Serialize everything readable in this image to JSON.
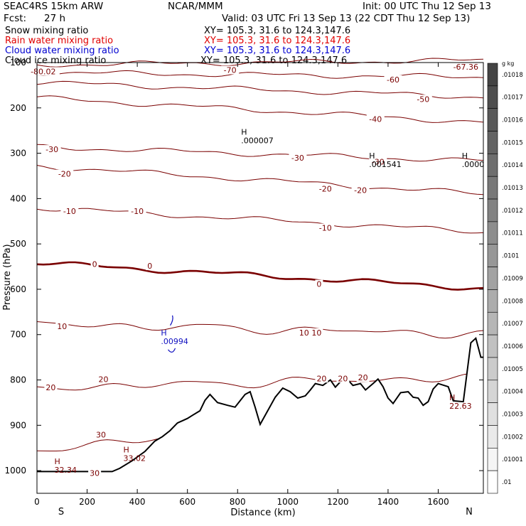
{
  "header": {
    "model": "SEAC4RS 15km ARW",
    "org": "NCAR/MMM",
    "init": "Init: 00 UTC Thu 12 Sep 13",
    "fcst_label": "Fcst:",
    "fcst_value": "27 h",
    "valid": "Valid: 03 UTC Fri 13 Sep 13 (22 CDT Thu 12 Sep 13)"
  },
  "legend": [
    {
      "label": "Snow mixing ratio",
      "xy": "XY= 105.3, 31.6 to 124.3,147.6",
      "color": "#000000"
    },
    {
      "label": "Rain water mixing ratio",
      "xy": "XY= 105.3, 31.6 to 124.3,147.6",
      "color": "#e00000"
    },
    {
      "label": "Cloud water mixing ratio",
      "xy": "XY= 105.3, 31.6 to 124.3,147.6",
      "color": "#0000d0"
    },
    {
      "label": "Cloud ice mixing ratio",
      "xy": "XY= 105.3, 31.6 to 124.3,147.6",
      "color": "#000000"
    }
  ],
  "colors": {
    "temperature_contour": "#7a0000",
    "freezing_contour": "#7a0000",
    "terrain": "#000000",
    "cloud_water": "#1010c0"
  },
  "chart_data": {
    "type": "cross-section",
    "xlabel": "Distance (km)",
    "ylabel": "Pressure (hPa)",
    "xlim": [
      0,
      1780
    ],
    "ylim": [
      1050,
      100
    ],
    "x_ticks": [
      0,
      200,
      400,
      600,
      800,
      1000,
      1200,
      1400,
      1600
    ],
    "y_ticks": [
      200,
      300,
      400,
      500,
      600,
      700,
      800,
      900,
      1000
    ],
    "y_tick_top_label": "100",
    "endpoints": {
      "left": "S",
      "right": "N"
    },
    "temperature_contours": [
      {
        "value": -70,
        "label": "-70",
        "p_left": 105,
        "p_right": 95,
        "label_x": 780,
        "label_p": 118
      },
      {
        "value": -60,
        "label": "-60",
        "p_left": 122,
        "p_right": 132,
        "label_x": 1420,
        "label_p": 139
      },
      {
        "value": -50,
        "label": "-50",
        "p_left": 144,
        "p_right": 176,
        "label_x": 1540,
        "label_p": 181
      },
      {
        "value": -40,
        "label": "-40",
        "p_left": 178,
        "p_right": 232,
        "label_x": 1350,
        "label_p": 225
      },
      {
        "value": -30,
        "label": "-30",
        "p_left": 286,
        "p_right": 317,
        "label_x": 1020,
        "label_p": 312
      },
      {
        "value": -20,
        "label": "-20",
        "p_left": 328,
        "p_right": 390,
        "label_x": 1220,
        "label_p": 382
      },
      {
        "value": -10,
        "label": "-10",
        "p_left": 420,
        "p_right": 473,
        "label_x": 1120,
        "label_p": 466
      },
      {
        "value": 0,
        "label": "0",
        "p_left": 542,
        "p_right": 598,
        "label_x": 1125,
        "label_p": 589
      },
      {
        "value": 10,
        "label": "10",
        "p_left": 676,
        "p_right": 699,
        "label_x": 1100,
        "label_p": 696
      },
      {
        "value": 20,
        "label": "20",
        "p_left": 817,
        "p_right": 794,
        "label_x": 1125,
        "label_p": 797
      },
      {
        "value": 30,
        "label": "30",
        "p_left": 952,
        "p_right": 875,
        "label_x": 260,
        "label_p": 922
      }
    ],
    "contour_labels": [
      {
        "text": "-80.02",
        "x": 25,
        "p": 121
      },
      {
        "text": "-67.36",
        "x": 1710,
        "p": 111
      },
      {
        "text": "-70",
        "x": 770,
        "p": 118
      },
      {
        "text": "-60",
        "x": 1420,
        "p": 139
      },
      {
        "text": "-50",
        "x": 1540,
        "p": 182
      },
      {
        "text": "-40",
        "x": 1350,
        "p": 226
      },
      {
        "text": "-30",
        "x": 60,
        "p": 293
      },
      {
        "text": "-30",
        "x": 1040,
        "p": 312
      },
      {
        "text": "-30",
        "x": 1360,
        "p": 320
      },
      {
        "text": "-20",
        "x": 110,
        "p": 347
      },
      {
        "text": "-20",
        "x": 1150,
        "p": 380
      },
      {
        "text": "-20",
        "x": 1290,
        "p": 383
      },
      {
        "text": "-10",
        "x": 130,
        "p": 429
      },
      {
        "text": "-10",
        "x": 400,
        "p": 429
      },
      {
        "text": "-10",
        "x": 1150,
        "p": 466
      },
      {
        "text": "0",
        "x": 230,
        "p": 546
      },
      {
        "text": "0",
        "x": 450,
        "p": 550
      },
      {
        "text": "0",
        "x": 1125,
        "p": 590
      },
      {
        "text": "10",
        "x": 100,
        "p": 683
      },
      {
        "text": "10",
        "x": 1065,
        "p": 697
      },
      {
        "text": "10",
        "x": 1115,
        "p": 697
      },
      {
        "text": "20",
        "x": 55,
        "p": 818
      },
      {
        "text": "20",
        "x": 265,
        "p": 800
      },
      {
        "text": "20",
        "x": 1135,
        "p": 798
      },
      {
        "text": "20",
        "x": 1220,
        "p": 798
      },
      {
        "text": "20",
        "x": 1300,
        "p": 796
      },
      {
        "text": "30",
        "x": 255,
        "p": 922
      },
      {
        "text": "30",
        "x": 230,
        "p": 1007
      }
    ],
    "extrema": [
      {
        "mark": "H",
        "value": ".000007",
        "x": 820,
        "p": 265,
        "color": "#000000"
      },
      {
        "mark": "H",
        "value": ".001541",
        "x": 1330,
        "p": 318,
        "color": "#000000"
      },
      {
        "mark": "H",
        "value": ".0000",
        "x": 1700,
        "p": 318,
        "color": "#000000"
      },
      {
        "mark": "H",
        "value": ".00994",
        "x": 500,
        "p": 708,
        "color": "#1010c0"
      },
      {
        "mark": "H",
        "value": "32.34",
        "x": 75,
        "p": 992,
        "color": "#7a0000"
      },
      {
        "mark": "H",
        "value": "33.02",
        "x": 350,
        "p": 966,
        "color": "#7a0000"
      },
      {
        "mark": "H",
        "value": "22.63",
        "x": 1650,
        "p": 851,
        "color": "#7a0000"
      }
    ],
    "terrain_km_hpa": [
      [
        0,
        1002
      ],
      [
        100,
        1002
      ],
      [
        300,
        1002
      ],
      [
        330,
        995
      ],
      [
        380,
        978
      ],
      [
        430,
        958
      ],
      [
        470,
        935
      ],
      [
        500,
        925
      ],
      [
        530,
        912
      ],
      [
        560,
        895
      ],
      [
        600,
        885
      ],
      [
        620,
        878
      ],
      [
        650,
        868
      ],
      [
        670,
        845
      ],
      [
        690,
        832
      ],
      [
        720,
        850
      ],
      [
        760,
        856
      ],
      [
        790,
        860
      ],
      [
        830,
        832
      ],
      [
        850,
        826
      ],
      [
        870,
        860
      ],
      [
        890,
        898
      ],
      [
        920,
        868
      ],
      [
        950,
        838
      ],
      [
        980,
        818
      ],
      [
        1010,
        826
      ],
      [
        1040,
        840
      ],
      [
        1070,
        835
      ],
      [
        1090,
        822
      ],
      [
        1110,
        808
      ],
      [
        1140,
        812
      ],
      [
        1170,
        800
      ],
      [
        1190,
        816
      ],
      [
        1220,
        798
      ],
      [
        1240,
        800
      ],
      [
        1260,
        812
      ],
      [
        1290,
        808
      ],
      [
        1310,
        822
      ],
      [
        1340,
        808
      ],
      [
        1360,
        798
      ],
      [
        1380,
        815
      ],
      [
        1400,
        840
      ],
      [
        1420,
        852
      ],
      [
        1450,
        828
      ],
      [
        1480,
        826
      ],
      [
        1500,
        838
      ],
      [
        1520,
        840
      ],
      [
        1540,
        856
      ],
      [
        1560,
        848
      ],
      [
        1580,
        820
      ],
      [
        1600,
        808
      ],
      [
        1640,
        815
      ],
      [
        1660,
        846
      ],
      [
        1700,
        848
      ],
      [
        1730,
        718
      ],
      [
        1750,
        708
      ],
      [
        1770,
        750
      ],
      [
        1780,
        750
      ]
    ],
    "colorbar": {
      "unit": "g kg",
      "labels": [
        ".01018",
        ".01017",
        ".01016",
        ".01015",
        ".01014",
        ".01013",
        ".01012",
        ".01011",
        ".0101",
        ".01009",
        ".01008",
        ".01007",
        ".01006",
        ".01005",
        ".01004",
        ".01003",
        ".01002",
        ".01001",
        ".01"
      ]
    }
  }
}
